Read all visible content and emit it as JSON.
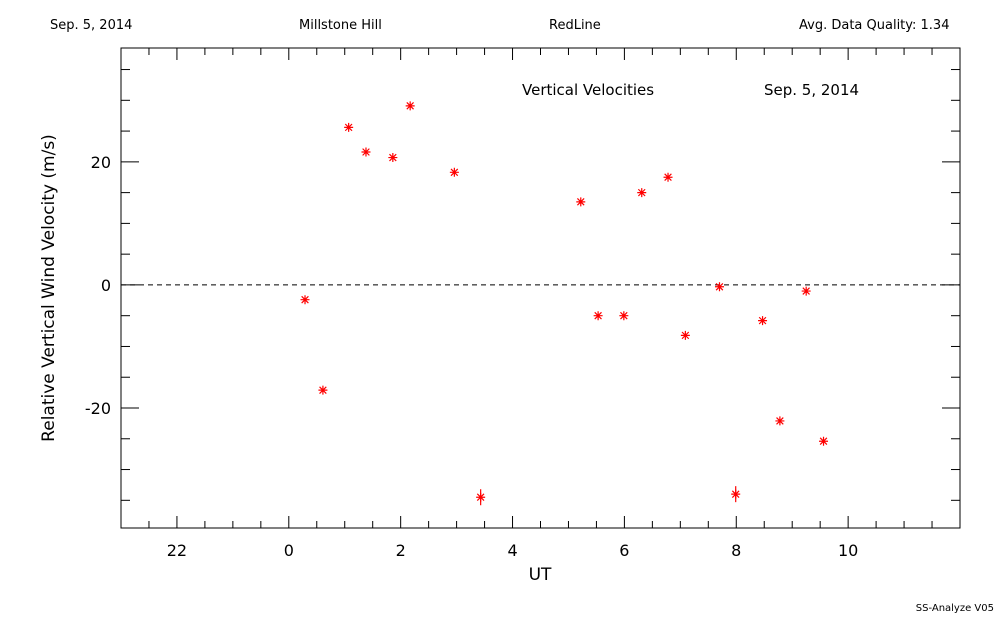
{
  "header": {
    "date": "Sep. 5, 2014",
    "site": "Millstone Hill",
    "instrument": "RedLine",
    "quality": "Avg. Data Quality: 1.34"
  },
  "footer": {
    "version": "SS-Analyze V05"
  },
  "chart_data": {
    "type": "scatter",
    "title": "Vertical Velocities",
    "date_label": "Sep. 5, 2014",
    "xlabel": "UT",
    "ylabel": "Relative Vertical Wind Velocity (m/s)",
    "xlim": [
      -3.0,
      12.0
    ],
    "ylim": [
      -39.5,
      38.5
    ],
    "x_ticks": [
      22,
      0,
      2,
      4,
      6,
      8,
      10
    ],
    "x_tick_values": [
      -2,
      0,
      2,
      4,
      6,
      8,
      10
    ],
    "y_ticks": [
      -20,
      0,
      20
    ],
    "reference_line": 0,
    "marker": "asterisk",
    "marker_color": "#ff0000",
    "x": [
      0.29,
      0.61,
      1.07,
      1.38,
      1.86,
      2.17,
      2.96,
      3.43,
      5.22,
      5.53,
      5.99,
      6.31,
      6.78,
      7.09,
      7.7,
      7.99,
      8.47,
      8.78,
      9.25,
      9.56
    ],
    "y": [
      -2.4,
      -17.1,
      25.6,
      21.6,
      20.7,
      29.1,
      18.3,
      -34.5,
      13.5,
      -5.0,
      -5.0,
      15.0,
      17.5,
      -8.2,
      -0.3,
      -34.0,
      -5.8,
      -22.1,
      -1.0,
      -25.4
    ],
    "yerr": [
      0.3,
      0.3,
      0.3,
      0.3,
      0.3,
      0.3,
      0.3,
      1.3,
      0.3,
      0.3,
      0.3,
      0.3,
      0.3,
      0.3,
      0.3,
      1.3,
      0.3,
      0.3,
      0.3,
      0.3
    ]
  }
}
